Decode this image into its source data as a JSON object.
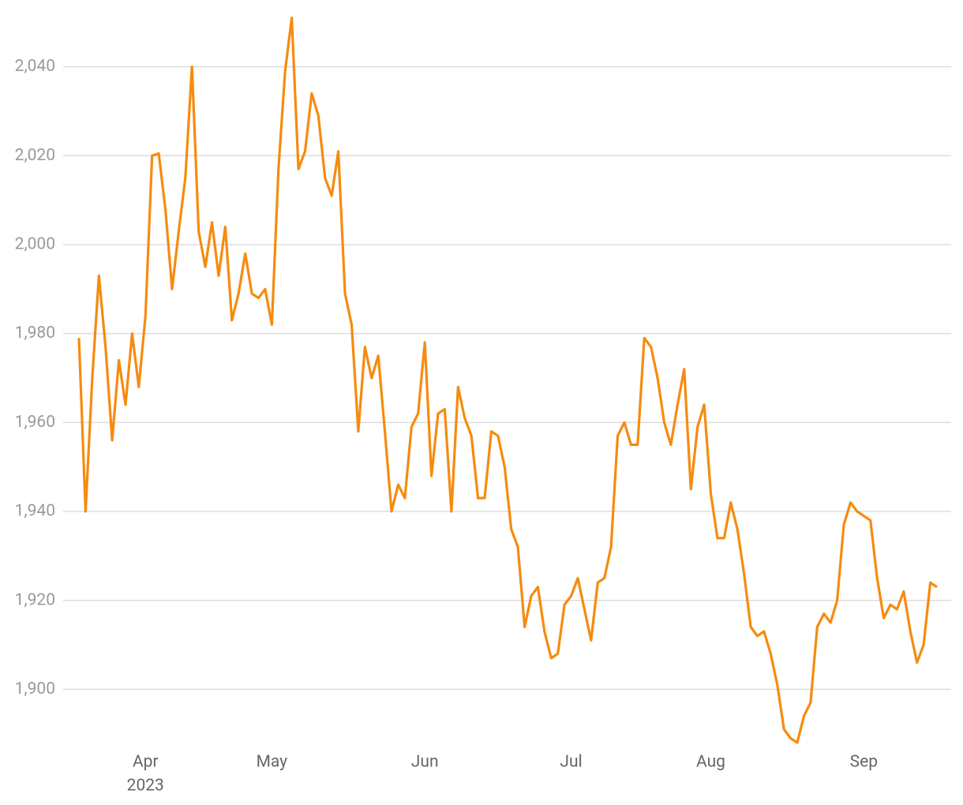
{
  "chart_data": {
    "type": "line",
    "categories": [
      null,
      null,
      null,
      null,
      null,
      null,
      null,
      null,
      null,
      null,
      "Apr",
      null,
      null,
      null,
      null,
      null,
      null,
      null,
      null,
      null,
      null,
      null,
      null,
      null,
      null,
      null,
      null,
      null,
      null,
      "May",
      null,
      null,
      null,
      null,
      null,
      null,
      null,
      null,
      null,
      null,
      null,
      null,
      null,
      null,
      null,
      null,
      null,
      null,
      null,
      null,
      null,
      null,
      "Jun",
      null,
      null,
      null,
      null,
      null,
      null,
      null,
      null,
      null,
      null,
      null,
      null,
      null,
      null,
      null,
      null,
      null,
      null,
      null,
      null,
      null,
      "Jul",
      null,
      null,
      null,
      null,
      null,
      null,
      null,
      null,
      null,
      null,
      null,
      null,
      null,
      null,
      null,
      null,
      null,
      null,
      null,
      null,
      "Aug",
      null,
      null,
      null,
      null,
      null,
      null,
      null,
      null,
      null,
      null,
      null,
      null,
      null,
      null,
      null,
      null,
      null,
      null,
      null,
      null,
      null,
      null,
      "Sep",
      null,
      null,
      null,
      null,
      null,
      null,
      null,
      null,
      null,
      null,
      null
    ],
    "x_year": "2023",
    "series": [
      {
        "color": "#f68b0f",
        "values": [
          1979,
          1940,
          1970,
          1993,
          1977,
          1956,
          1974,
          1964,
          1980,
          1968,
          1984,
          2020,
          2020.5,
          2008,
          1990,
          2003,
          2015,
          2040,
          2003,
          1995,
          2005,
          1993,
          2004,
          1983,
          1989,
          1998,
          1989,
          1988,
          1990,
          1982,
          2017,
          2039,
          2051,
          2017,
          2021,
          2034,
          2029,
          2015,
          2011,
          2021,
          1989,
          1982,
          1958,
          1977,
          1970,
          1975,
          1958,
          1940,
          1946,
          1943,
          1959,
          1962,
          1978,
          1948,
          1962,
          1963,
          1940,
          1968,
          1961,
          1957,
          1943,
          1943,
          1958,
          1957,
          1950,
          1936,
          1932,
          1914,
          1921,
          1923,
          1913,
          1907,
          1908,
          1919,
          1921,
          1925,
          1918,
          1911,
          1924,
          1925,
          1932,
          1957,
          1960,
          1955,
          1955,
          1979,
          1977,
          1970,
          1960,
          1955,
          1964,
          1972,
          1945,
          1959,
          1964,
          1944,
          1934,
          1934,
          1942,
          1936,
          1926,
          1914,
          1912,
          1913,
          1908,
          1901,
          1891,
          1889,
          1888,
          1894,
          1897,
          1914,
          1917,
          1915,
          1920,
          1937,
          1942,
          1940,
          1939,
          1938,
          1925,
          1916,
          1919,
          1918,
          1922,
          1913,
          1906,
          1910,
          1924,
          1923
        ]
      }
    ],
    "ylim": [
      1888,
      2052
    ],
    "yticks": [
      {
        "value": 1900,
        "label": "1,900"
      },
      {
        "value": 1920,
        "label": "1,920"
      },
      {
        "value": 1940,
        "label": "1,940"
      },
      {
        "value": 1960,
        "label": "1,960"
      },
      {
        "value": 1980,
        "label": "1,980"
      },
      {
        "value": 2000,
        "label": "2,000"
      },
      {
        "value": 2020,
        "label": "2,020"
      },
      {
        "value": 2040,
        "label": "2,040"
      }
    ],
    "grid": true
  }
}
